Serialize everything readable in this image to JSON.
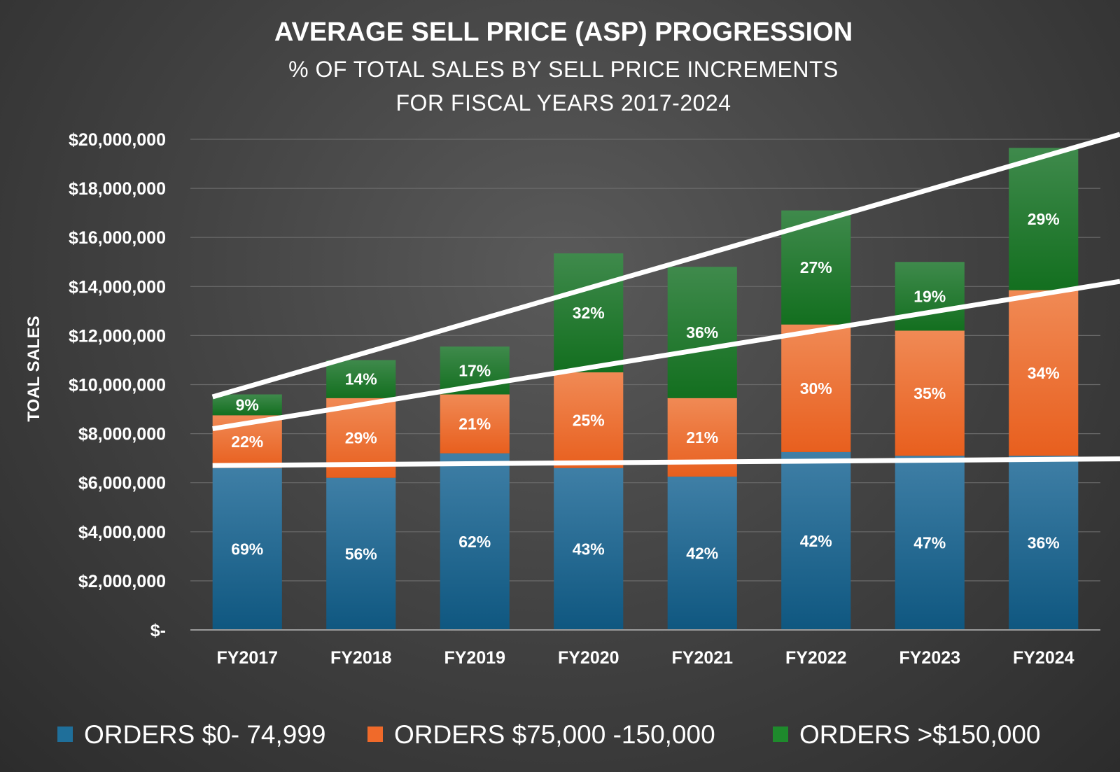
{
  "chart_data": {
    "type": "bar",
    "stacked": true,
    "title": "AVERAGE SELL PRICE (ASP) PROGRESSION",
    "subtitle_lines": [
      "% OF TOTAL SALES BY SELL PRICE INCREMENTS",
      "FOR FISCAL YEARS 2017-2024"
    ],
    "ylabel": "TOAL SALES",
    "xlabel": "",
    "ylim": [
      0,
      20000000
    ],
    "yticks": [
      0,
      2000000,
      4000000,
      6000000,
      8000000,
      10000000,
      12000000,
      14000000,
      16000000,
      18000000,
      20000000
    ],
    "ytick_labels": [
      "$-",
      "$2,000,000",
      "$4,000,000",
      "$6,000,000",
      "$8,000,000",
      "$10,000,000",
      "$12,000,000",
      "$14,000,000",
      "$16,000,000",
      "$18,000,000",
      "$20,000,000"
    ],
    "grid": true,
    "legend_position": "bottom",
    "categories": [
      "FY2017",
      "FY2018",
      "FY2019",
      "FY2020",
      "FY2021",
      "FY2022",
      "FY2023",
      "FY2024"
    ],
    "series": [
      {
        "name": "ORDERS $0- 74,999",
        "color": "#1f6f9a",
        "values": [
          6600000,
          6200000,
          7200000,
          6600000,
          6250000,
          7250000,
          7100000,
          7100000
        ],
        "labels": [
          "69%",
          "56%",
          "62%",
          "43%",
          "42%",
          "42%",
          "47%",
          "36%"
        ]
      },
      {
        "name": "ORDERS $75,000 -150,000",
        "color": "#f06a2a",
        "values": [
          2150000,
          3250000,
          2400000,
          3900000,
          3200000,
          5200000,
          5100000,
          6750000
        ],
        "labels": [
          "22%",
          "29%",
          "21%",
          "25%",
          "21%",
          "30%",
          "35%",
          "34%"
        ]
      },
      {
        "name": "ORDERS >$150,000",
        "color": "#1e8a2c",
        "values": [
          850000,
          1550000,
          1950000,
          4850000,
          5350000,
          4650000,
          2800000,
          5800000
        ],
        "labels": [
          "9%",
          "14%",
          "17%",
          "32%",
          "36%",
          "27%",
          "19%",
          "29%"
        ]
      }
    ],
    "trend_lines": [
      {
        "x_start": "FY2017",
        "y_start": 9500000,
        "x_end": "FY2024",
        "y_end": 19300000
      },
      {
        "x_start": "FY2017",
        "y_start": 8200000,
        "x_end": "FY2024",
        "y_end": 13700000
      },
      {
        "x_start": "FY2017",
        "y_start": 6700000,
        "x_end": "FY2024",
        "y_end": 6950000
      }
    ]
  }
}
